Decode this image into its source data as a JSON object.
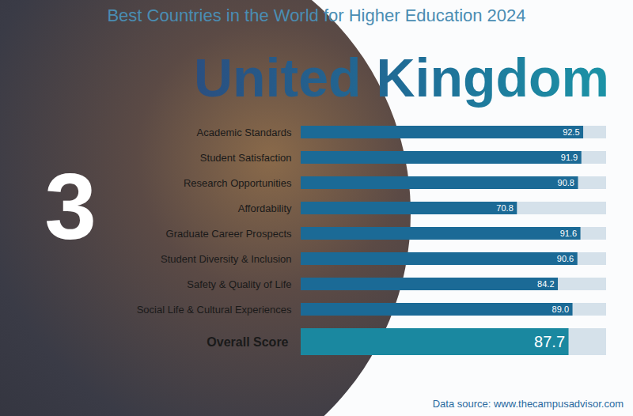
{
  "chart_data": {
    "type": "bar",
    "orientation": "horizontal",
    "title": "Best Countries in the World for Higher Education 2024",
    "subtitle": "United Kingdom",
    "annotation": "3",
    "caption": "Data source: www.thecampusadvisor.com",
    "categories": [
      "Academic Standards",
      "Student Satisfaction",
      "Research Opportunities",
      "Affordability",
      "Graduate Career Prospects",
      "Student Diversity & Inclusion",
      "Safety & Quality of Life",
      "Social Life & Cultural Experiences",
      "Overall Score"
    ],
    "values": [
      92.5,
      91.9,
      90.8,
      70.8,
      91.6,
      90.6,
      84.2,
      89.0,
      87.7
    ],
    "value_labels": [
      "92.5",
      "91.9",
      "90.8",
      "70.8",
      "91.6",
      "90.6",
      "84.2",
      "89.0",
      "87.7"
    ],
    "colors": [
      "#1b6a96",
      "#1b6a96",
      "#1b6a96",
      "#1b6a96",
      "#1b6a96",
      "#1b6a96",
      "#1b6a96",
      "#1b6a96",
      "#1a88a0"
    ],
    "xlim": [
      0,
      100
    ],
    "tick_labels": "y",
    "data_labels": true
  }
}
